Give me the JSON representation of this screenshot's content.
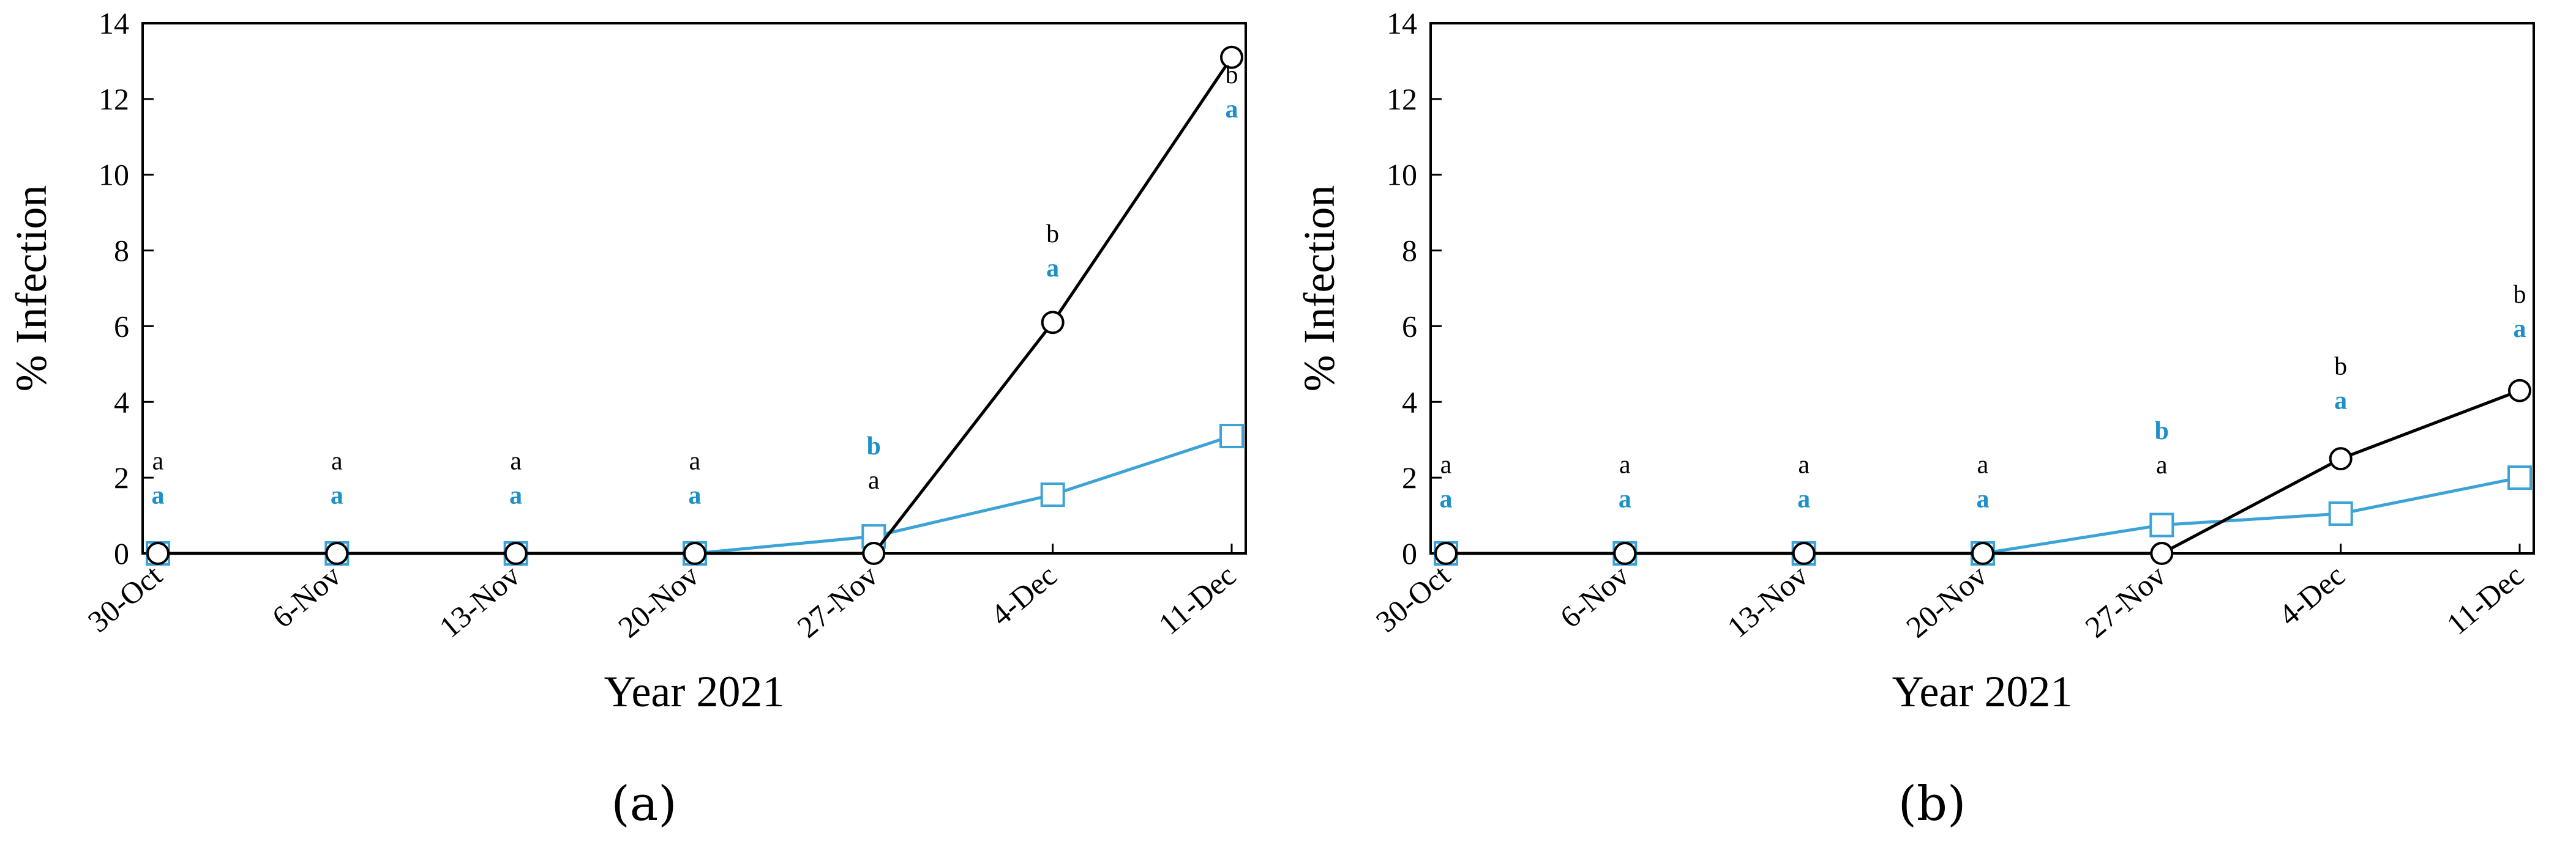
{
  "chart_data": [
    {
      "type": "line",
      "panel_caption": "(a)",
      "xlabel": "Year 2021",
      "ylabel": "% Infection",
      "ylim": [
        0,
        14
      ],
      "yticks": [
        "0",
        "2",
        "4",
        "6",
        "8",
        "10",
        "12",
        "14"
      ],
      "categories": [
        "30-Oct",
        "6-Nov",
        "13-Nov",
        "20-Nov",
        "27-Nov",
        "4-Dec",
        "11-Dec"
      ],
      "series": [
        {
          "marker": "circle",
          "color": "#000000",
          "values": [
            0,
            0,
            0,
            0,
            0,
            6.1,
            13.1
          ]
        },
        {
          "marker": "square",
          "color": "#3ba3d6",
          "values": [
            0,
            0,
            0,
            0,
            0.45,
            1.55,
            3.1
          ]
        }
      ],
      "letters": [
        {
          "index": 0,
          "black": "a",
          "blue": "a",
          "order": "black-top",
          "y": 1.8
        },
        {
          "index": 1,
          "black": "a",
          "blue": "a",
          "order": "black-top",
          "y": 1.8
        },
        {
          "index": 2,
          "black": "a",
          "blue": "a",
          "order": "black-top",
          "y": 1.8
        },
        {
          "index": 3,
          "black": "a",
          "blue": "a",
          "order": "black-top",
          "y": 1.8
        },
        {
          "index": 4,
          "black": "a",
          "blue": "b",
          "order": "blue-top",
          "y": 2.2
        },
        {
          "index": 5,
          "black": "b",
          "blue": "a",
          "order": "black-top",
          "y": 7.8
        },
        {
          "index": 6,
          "black": "b",
          "blue": "a",
          "order": "black-top",
          "y": 12.0
        }
      ]
    },
    {
      "type": "line",
      "panel_caption": "(b)",
      "xlabel": "Year 2021",
      "ylabel": "% Infection",
      "ylim": [
        0,
        14
      ],
      "yticks": [
        "0",
        "2",
        "4",
        "6",
        "8",
        "10",
        "12",
        "14"
      ],
      "categories": [
        "30-Oct",
        "6-Nov",
        "13-Nov",
        "20-Nov",
        "27-Nov",
        "4-Dec",
        "11-Dec"
      ],
      "series": [
        {
          "marker": "circle",
          "color": "#000000",
          "values": [
            0,
            0,
            0,
            0,
            0,
            2.5,
            4.3
          ]
        },
        {
          "marker": "square",
          "color": "#3ba3d6",
          "values": [
            0,
            0,
            0,
            0,
            0.75,
            1.05,
            2.0
          ]
        }
      ],
      "letters": [
        {
          "index": 0,
          "black": "a",
          "blue": "a",
          "order": "black-top",
          "y": 1.7
        },
        {
          "index": 1,
          "black": "a",
          "blue": "a",
          "order": "black-top",
          "y": 1.7
        },
        {
          "index": 2,
          "black": "a",
          "blue": "a",
          "order": "black-top",
          "y": 1.7
        },
        {
          "index": 3,
          "black": "a",
          "blue": "a",
          "order": "black-top",
          "y": 1.7
        },
        {
          "index": 4,
          "black": "a",
          "blue": "b",
          "order": "blue-top",
          "y": 2.6
        },
        {
          "index": 5,
          "black": "b",
          "blue": "a",
          "order": "black-top",
          "y": 4.3
        },
        {
          "index": 6,
          "black": "b",
          "blue": "a",
          "order": "black-top",
          "y": 6.2
        }
      ]
    }
  ]
}
